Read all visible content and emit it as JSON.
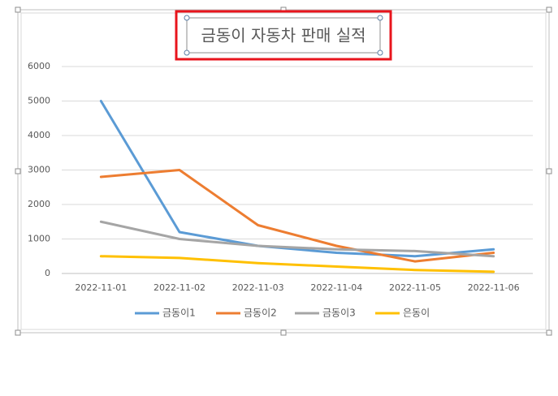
{
  "chart_data": {
    "type": "line",
    "title": "금동이 자동차 판매 실적",
    "categories": [
      "2022-11-01",
      "2022-11-02",
      "2022-11-03",
      "2022-11-04",
      "2022-11-05",
      "2022-11-06"
    ],
    "series": [
      {
        "name": "금동이1",
        "color": "#5b9bd5",
        "values": [
          5000,
          1200,
          800,
          600,
          500,
          700
        ]
      },
      {
        "name": "금동이2",
        "color": "#ed7d31",
        "values": [
          2800,
          3000,
          1400,
          800,
          350,
          600
        ]
      },
      {
        "name": "금동이3",
        "color": "#a5a5a5",
        "values": [
          1500,
          1000,
          800,
          700,
          650,
          500
        ]
      },
      {
        "name": "은동이",
        "color": "#ffc000",
        "values": [
          500,
          450,
          300,
          200,
          100,
          50
        ]
      }
    ],
    "ylim": [
      0,
      6000
    ],
    "yticks": [
      0,
      1000,
      2000,
      3000,
      4000,
      5000,
      6000
    ],
    "grid": true,
    "legend": "bottom"
  }
}
